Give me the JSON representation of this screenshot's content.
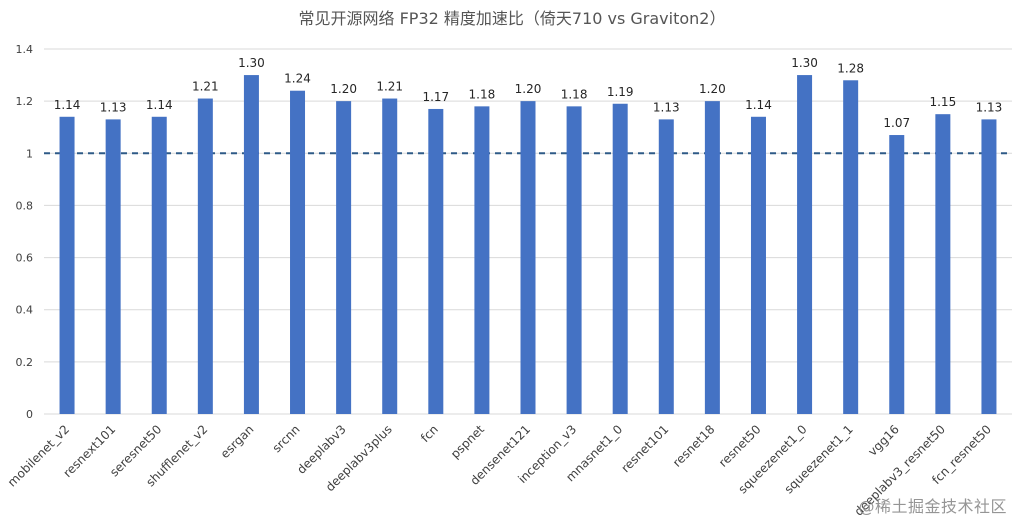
{
  "chart_data": {
    "type": "bar",
    "title": "常见开源网络 FP32 精度加速比（倚天710 vs Graviton2）",
    "xlabel": "",
    "ylabel": "",
    "categories": [
      "mobilenet_v2",
      "resnext101",
      "seresnet50",
      "shufflenet_v2",
      "esrgan",
      "srcnn",
      "deeplabv3",
      "deeplabv3plus",
      "fcn",
      "pspnet",
      "densenet121",
      "inception_v3",
      "mnasnet1_0",
      "resnet101",
      "resnet18",
      "resnet50",
      "squeezenet1_0",
      "squeezenet1_1",
      "vgg16",
      "deeplabv3_resnet50",
      "fcn_resnet50"
    ],
    "values": [
      1.14,
      1.13,
      1.14,
      1.21,
      1.3,
      1.24,
      1.2,
      1.21,
      1.17,
      1.18,
      1.2,
      1.18,
      1.19,
      1.13,
      1.2,
      1.14,
      1.3,
      1.28,
      1.07,
      1.15,
      1.13
    ],
    "value_labels": [
      "1.14",
      "1.13",
      "1.14",
      "1.21",
      "1.30",
      "1.24",
      "1.20",
      "1.21",
      "1.17",
      "1.18",
      "1.20",
      "1.18",
      "1.19",
      "1.13",
      "1.20",
      "1.14",
      "1.30",
      "1.28",
      "1.07",
      "1.15",
      "1.13"
    ],
    "yticks": [
      "0",
      "0.2",
      "0.4",
      "0.6",
      "0.8",
      "1",
      "1.2",
      "1.4"
    ],
    "ylim": [
      0,
      1.4
    ],
    "reference_line": 1.0,
    "grid": true,
    "legend": "none",
    "colors": {
      "bar": "#4472C4",
      "reference_line": "#2E5A87",
      "grid": "#D9D9D9"
    }
  },
  "watermark": "@稀土掘金技术社区"
}
